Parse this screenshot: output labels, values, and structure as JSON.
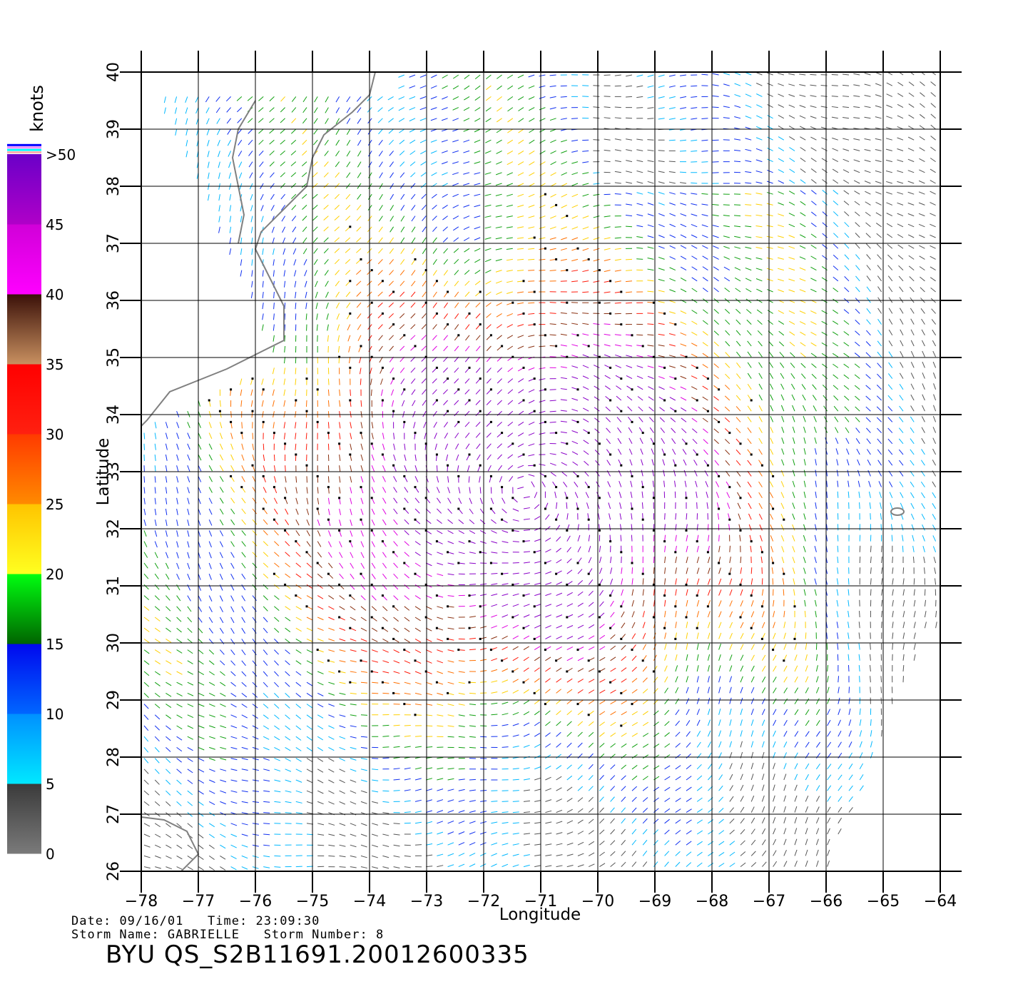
{
  "chart_data": {
    "type": "vector-field",
    "x_axis": {
      "label": "Longitude",
      "range": [
        -78,
        -64
      ],
      "ticks": [
        -78,
        -77,
        -76,
        -75,
        -74,
        -73,
        -72,
        -71,
        -70,
        -69,
        -68,
        -67,
        -66,
        -65,
        -64
      ],
      "tick_labels": [
        "−78",
        "−77",
        "−76",
        "−75",
        "−74",
        "−73",
        "−72",
        "−71",
        "−70",
        "−69",
        "−68",
        "−67",
        "−66",
        "−65",
        "−64"
      ]
    },
    "y_axis": {
      "label": "Latitude",
      "range": [
        26,
        40
      ],
      "ticks": [
        26,
        27,
        28,
        29,
        30,
        31,
        32,
        33,
        34,
        35,
        36,
        37,
        38,
        39,
        40
      ],
      "tick_labels": [
        "26",
        "27",
        "28",
        "29",
        "30",
        "31",
        "32",
        "33",
        "34",
        "35",
        "36",
        "37",
        "38",
        "39",
        "40"
      ]
    },
    "grid": true,
    "legend": {
      "title": "knots",
      "position": "left",
      "bands": [
        {
          "range": [
            0,
            5
          ],
          "colors": [
            "#7a7a7a",
            "#3a3a3a"
          ]
        },
        {
          "range": [
            5,
            10
          ],
          "colors": [
            "#00e8ff",
            "#0090ff"
          ]
        },
        {
          "range": [
            10,
            15
          ],
          "colors": [
            "#0066ff",
            "#0008ee"
          ]
        },
        {
          "range": [
            15,
            20
          ],
          "colors": [
            "#006400",
            "#00ff10"
          ]
        },
        {
          "range": [
            20,
            25
          ],
          "colors": [
            "#ffff20",
            "#ffc400"
          ]
        },
        {
          "range": [
            25,
            30
          ],
          "colors": [
            "#ff8a00",
            "#ff3a00"
          ]
        },
        {
          "range": [
            30,
            35
          ],
          "colors": [
            "#ff2010",
            "#ff0000"
          ]
        },
        {
          "range": [
            35,
            40
          ],
          "colors": [
            "#c89060",
            "#3a1008"
          ]
        },
        {
          "range": [
            40,
            45
          ],
          "colors": [
            "#ff00ff",
            "#d000d8"
          ]
        },
        {
          "range": [
            45,
            50
          ],
          "colors": [
            "#b000c8",
            "#6a00c8"
          ]
        }
      ],
      "tick_labels": [
        "0",
        "5",
        "10",
        "15",
        "20",
        "25",
        "30",
        "35",
        "40",
        "45",
        ">50"
      ],
      "top_stripes": [
        "#ffb0b0",
        "#00ffff",
        "#ff90ff",
        "#0000ff"
      ]
    },
    "storm_center": {
      "lon": -71.3,
      "lat": 32.7
    },
    "coverage_note_colors": {
      "coast": "#808080",
      "land_lines": "#808080"
    }
  },
  "footer": {
    "date_label": "Date:",
    "date": "09/16/01",
    "time_label": "Time:",
    "time": "23:09:30",
    "storm_name_label": "Storm Name:",
    "storm_name": "GABRIELLE",
    "storm_number_label": "Storm Number:",
    "storm_number": "8",
    "file_id": "BYU QS_S2B11691.20012600335"
  }
}
